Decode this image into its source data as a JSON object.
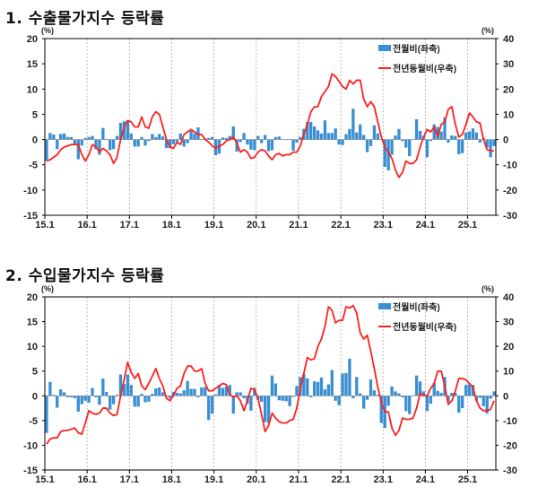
{
  "chart_data": [
    {
      "type": "bar+line",
      "title": "1. 수출물가지수 등락률",
      "left_unit": "(%)",
      "right_unit": "(%)",
      "left_ylim": [
        -15,
        20
      ],
      "right_ylim": [
        -30,
        40
      ],
      "left_ticks": [
        "20",
        "15",
        "10",
        "5",
        "0",
        "-5",
        "-10",
        "-15"
      ],
      "right_ticks": [
        "40",
        "30",
        "20",
        "10",
        "0",
        "-10",
        "-20",
        "-30"
      ],
      "x_tick_labels": [
        "15.1",
        "16.1",
        "17.1",
        "18.1",
        "19.1",
        "20.1",
        "21.1",
        "22.1",
        "23.1",
        "24.1",
        "25.1"
      ],
      "x_start": "2015.1",
      "legend": [
        "전월비(좌축)",
        "전년동월비(우축)"
      ],
      "colors": {
        "bar": "#3a8fd3",
        "line": "#ff2020"
      },
      "series": [
        {
          "name": "전월비(좌축)",
          "axis": "left",
          "kind": "bar",
          "values": [
            -4.2,
            1.3,
            1.0,
            -1.9,
            1.1,
            1.2,
            0.5,
            0.5,
            -1.1,
            -3.9,
            -1.2,
            0.3,
            0.5,
            0.7,
            -1.9,
            -3.0,
            2.3,
            0.1,
            -2.1,
            -1.9,
            0.7,
            3.3,
            3.6,
            3.8,
            1.2,
            -1.4,
            -1.4,
            0.5,
            -1.2,
            -0.3,
            1.1,
            0.5,
            1.1,
            0.6,
            -1.7,
            -1.7,
            -0.9,
            -0.4,
            1.2,
            -1.4,
            -0.7,
            1.7,
            1.2,
            2.4,
            0.1,
            0.2,
            0.3,
            0.5,
            -3.1,
            -2.8,
            0.4,
            0.3,
            0.7,
            2.6,
            -2.4,
            -0.5,
            1.3,
            -1.0,
            -2.0,
            -2.1,
            0.7,
            -0.7,
            0.9,
            -2.3,
            -2.1,
            0.5,
            0.6,
            -0.1,
            -0.1,
            -0.1,
            -2.2,
            -0.6,
            0.5,
            2.1,
            3.5,
            3.5,
            2.6,
            1.8,
            1.2,
            3.8,
            1.3,
            1.3,
            2.2,
            -1.0,
            -1.1,
            1.1,
            2.1,
            6.1,
            1.4,
            3.0,
            0.9,
            -2.5,
            -1.3,
            2.8,
            1.2,
            -0.1,
            -5.4,
            -6.1,
            -3.0,
            0.8,
            2.1,
            -0.3,
            -1.6,
            -3.3,
            -0.1,
            4.0,
            1.7,
            0.7,
            -3.5,
            -0.3,
            3.0,
            2.5,
            1.6,
            4.4,
            -0.6,
            0.8,
            0.7,
            -2.9,
            -2.7,
            1.4,
            1.6,
            2.2,
            1.4,
            -0.6,
            0.3,
            -1.6,
            -3.5,
            -1.3,
            0.8,
            0.7
          ]
        },
        {
          "name": "전년동월비(우축)",
          "axis": "right",
          "kind": "line",
          "values": [
            -8.5,
            -8,
            -7,
            -6,
            -4,
            -3,
            -2.5,
            -2,
            -2,
            -2,
            -6,
            -8.5,
            -6,
            -2,
            -3,
            -5,
            -3.5,
            -4.5,
            -6,
            -9.5,
            -7,
            0,
            5,
            7.5,
            7,
            5,
            5,
            9,
            5,
            4.5,
            9,
            11,
            10,
            5,
            0,
            -3,
            -3.5,
            -1,
            -2,
            2,
            3,
            4,
            3,
            2,
            2,
            0,
            -1,
            -2.5,
            -3.5,
            -2.5,
            -2,
            -0.5,
            0,
            1,
            -1.5,
            -5,
            -4,
            -5,
            -7.5,
            -7,
            -5,
            -4,
            -4.5,
            -6.5,
            -8,
            -6,
            -5.5,
            -6.5,
            -6,
            -6,
            -5,
            -5,
            -2.5,
            2,
            6,
            11,
            13,
            13,
            17,
            19,
            21,
            26,
            25,
            23,
            21,
            20,
            23.5,
            22,
            23.5,
            23.5,
            16,
            13,
            15,
            13,
            7,
            1,
            -3,
            -5,
            -7.5,
            -12,
            -15,
            -13,
            -8.5,
            -9.5,
            -9.5,
            -8,
            -3,
            1,
            4,
            3,
            5,
            1,
            6,
            7,
            12,
            13,
            6,
            1,
            2,
            6,
            10.5,
            9,
            7,
            6.5,
            0,
            -4,
            -4.5,
            -4.5,
            -1
          ]
        }
      ]
    },
    {
      "type": "bar+line",
      "title": "2. 수입물가지수 등락률",
      "left_unit": "(%)",
      "right_unit": "(%)",
      "left_ylim": [
        -15,
        20
      ],
      "right_ylim": [
        -30,
        40
      ],
      "left_ticks": [
        "20",
        "15",
        "10",
        "5",
        "0",
        "-5",
        "-10",
        "-15"
      ],
      "right_ticks": [
        "40",
        "30",
        "20",
        "10",
        "0",
        "-10",
        "-20",
        "-30"
      ],
      "x_tick_labels": [
        "15.1",
        "16.1",
        "17.1",
        "18.1",
        "19.1",
        "20.1",
        "21.1",
        "22.1",
        "23.1",
        "24.1",
        "25.1"
      ],
      "x_start": "2015.1",
      "legend": [
        "전월비(좌축)",
        "전년동월비(우축)"
      ],
      "colors": {
        "bar": "#3a8fd3",
        "line": "#ff2020"
      },
      "series": [
        {
          "name": "전월비(좌축)",
          "axis": "left",
          "kind": "bar",
          "values": [
            -7.5,
            2.8,
            0.2,
            -2.4,
            1.3,
            0.7,
            -0.3,
            -0.3,
            -0.5,
            -3.2,
            -1.7,
            -1.0,
            -1.4,
            1.6,
            -0.3,
            -1.8,
            3.5,
            0.8,
            -2.8,
            -1.7,
            0.2,
            4.3,
            2.4,
            4.3,
            2.2,
            -2.2,
            -2.2,
            0.4,
            -1.3,
            -1.2,
            0.4,
            1.5,
            1.7,
            0.7,
            -0.2,
            -0.5,
            0.8,
            0.6,
            0.5,
            1.1,
            3.0,
            1.4,
            1.4,
            -0.3,
            1.7,
            1.8,
            -4.9,
            -3.6,
            0.3,
            2.2,
            1.6,
            1.9,
            2.2,
            -3.6,
            0.7,
            0.7,
            -0.5,
            -1.6,
            -3.0,
            1.6,
            -0.8,
            -1.2,
            -5.3,
            -5.5,
            4.1,
            2.5,
            -0.9,
            -1.0,
            -1.1,
            -2.1,
            -0.2,
            2.0,
            3.8,
            4.4,
            3.5,
            -0.3,
            2.9,
            2.8,
            3.7,
            1.3,
            2.3,
            5.2,
            -1.0,
            -1.9,
            4.5,
            4.6,
            7.5,
            -0.5,
            3.8,
            0.5,
            -2.6,
            -0.8,
            3.3,
            1.1,
            0.2,
            -5.5,
            -6.5,
            -2.0,
            1.9,
            0.9,
            0.5,
            -0.3,
            -3.1,
            -3.7,
            0.1,
            4.1,
            2.9,
            0.9,
            -3.1,
            -1.6,
            2.6,
            1.0,
            0.6,
            3.8,
            -1.2,
            0.6,
            0.6,
            -3.4,
            -2.5,
            2.2,
            2.3,
            2.2,
            -1.0,
            -0.4,
            -2.1,
            -3.6,
            -0.6,
            0.9,
            0.4
          ]
        },
        {
          "name": "전년동월비(우축)",
          "axis": "right",
          "kind": "line",
          "values": [
            -19.5,
            -17.5,
            -17,
            -17,
            -14.5,
            -14,
            -14,
            -13.5,
            -13,
            -15,
            -15.5,
            -11,
            -6,
            -7,
            -7.5,
            -7,
            -5,
            -5,
            -7,
            -8,
            -7.5,
            0,
            6.5,
            13.5,
            9.5,
            7,
            9,
            4,
            2.5,
            5,
            8,
            11,
            7,
            4,
            -1,
            -2,
            0,
            3,
            4,
            9,
            12,
            12,
            10,
            10,
            11,
            5,
            2,
            2,
            3,
            4,
            5,
            4.5,
            0.5,
            -0.5,
            0,
            -2,
            -6,
            -2,
            3,
            2.5,
            -1,
            -7.5,
            -14.5,
            -12,
            -7,
            -9,
            -10.5,
            -11,
            -11,
            -10,
            -9.5,
            -5,
            3,
            9,
            15.5,
            14.5,
            15,
            20,
            23,
            28,
            36,
            34.5,
            29.5,
            30.5,
            30.5,
            36,
            35.5,
            36.5,
            33.5,
            25.5,
            23,
            24.5,
            18,
            11,
            3.5,
            -2.5,
            -6.5,
            -6.5,
            -13,
            -16,
            -14,
            -9,
            -9.5,
            -9.5,
            -9,
            -5,
            1,
            0,
            0,
            3,
            5,
            10,
            10,
            4,
            -3.5,
            -2,
            2,
            7,
            7,
            6.5,
            5,
            3.5,
            -2,
            -5,
            -6,
            -6,
            -5.5,
            -2
          ]
        }
      ]
    }
  ]
}
